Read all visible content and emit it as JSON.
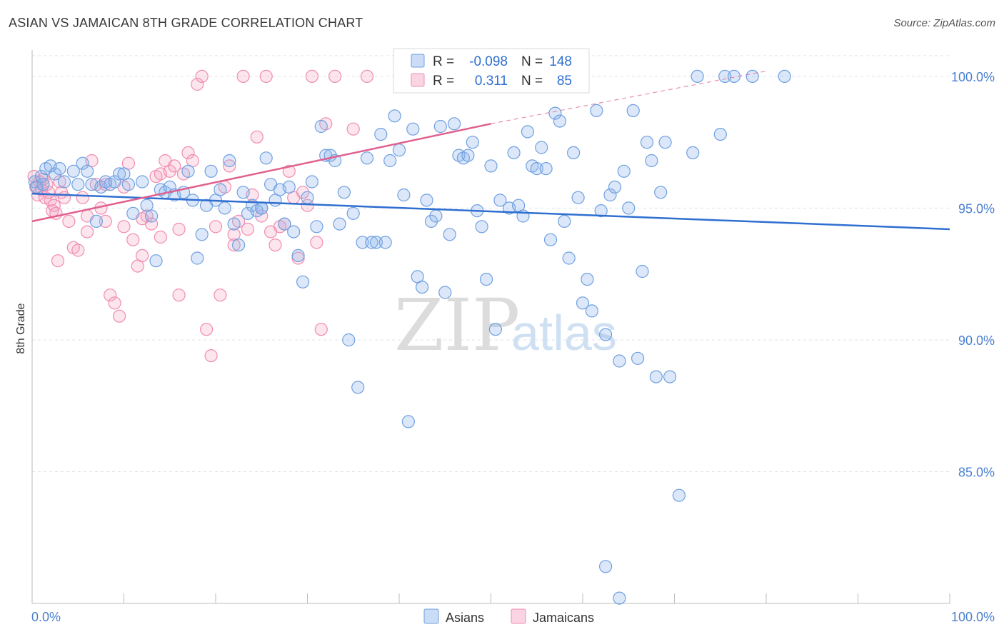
{
  "title": "ASIAN VS JAMAICAN 8TH GRADE CORRELATION CHART",
  "source": "Source: ZipAtlas.com",
  "watermark": {
    "zip": "ZIP",
    "atlas": "atlas"
  },
  "colors": {
    "asians": "#6fa0e0",
    "asians_fill": "rgba(140,180,235,0.30)",
    "asians_line": "#2f6fd0",
    "jamaicans": "#f08cb0",
    "jamaicans_fill": "rgba(245,160,190,0.28)",
    "jamaicans_line": "#e0608e",
    "grid": "#dde3ea",
    "tick_text": "#4a7fd0"
  },
  "stats": {
    "asians": {
      "r_label": "R =",
      "r": "-0.098",
      "n_label": "N =",
      "n": "148"
    },
    "jamaicans": {
      "r_label": "R =",
      "r": "0.311",
      "n_label": "N =",
      "n": "85"
    }
  },
  "chart_data": {
    "type": "scatter",
    "title": "ASIAN VS JAMAICAN 8TH GRADE CORRELATION CHART",
    "xlabel": "",
    "ylabel": "8th Grade",
    "xlim": [
      0,
      100
    ],
    "ylim": [
      80.0,
      101.0
    ],
    "x_ticks": [
      0,
      100
    ],
    "x_tick_labels": [
      "0.0%",
      "100.0%"
    ],
    "y_ticks": [
      85,
      90,
      95,
      100
    ],
    "y_tick_labels": [
      "85.0%",
      "90.0%",
      "95.0%",
      "100.0%"
    ],
    "grid": true,
    "legend": "bottom",
    "series": [
      {
        "name": "Asians",
        "trend": {
          "x": [
            0,
            100
          ],
          "y": [
            95.55,
            94.2
          ]
        },
        "points": [
          [
            0.3,
            96.0
          ],
          [
            0.5,
            95.8
          ],
          [
            1.0,
            96.2
          ],
          [
            1.2,
            95.9
          ],
          [
            1.5,
            96.5
          ],
          [
            2.0,
            96.6
          ],
          [
            2.5,
            96.3
          ],
          [
            3.0,
            96.5
          ],
          [
            3.5,
            96.0
          ],
          [
            4.5,
            96.4
          ],
          [
            5.0,
            95.9
          ],
          [
            5.5,
            96.7
          ],
          [
            6.0,
            96.4
          ],
          [
            6.5,
            95.9
          ],
          [
            7.0,
            94.5
          ],
          [
            7.5,
            95.8
          ],
          [
            8.0,
            96.0
          ],
          [
            8.5,
            95.9
          ],
          [
            9.0,
            96.0
          ],
          [
            9.5,
            96.3
          ],
          [
            10.0,
            96.3
          ],
          [
            10.5,
            95.9
          ],
          [
            11.0,
            94.8
          ],
          [
            12.0,
            96.0
          ],
          [
            12.5,
            95.1
          ],
          [
            13.0,
            94.7
          ],
          [
            13.5,
            93.0
          ],
          [
            14.0,
            95.7
          ],
          [
            14.5,
            95.6
          ],
          [
            15.0,
            95.8
          ],
          [
            15.5,
            95.5
          ],
          [
            16.5,
            95.6
          ],
          [
            17.0,
            96.4
          ],
          [
            17.5,
            95.3
          ],
          [
            18.0,
            93.1
          ],
          [
            18.5,
            94.0
          ],
          [
            19.0,
            95.1
          ],
          [
            19.5,
            96.4
          ],
          [
            20.0,
            95.3
          ],
          [
            20.5,
            95.7
          ],
          [
            21.0,
            95.0
          ],
          [
            21.5,
            96.8
          ],
          [
            22.0,
            94.4
          ],
          [
            22.5,
            93.6
          ],
          [
            23.0,
            95.6
          ],
          [
            23.5,
            94.8
          ],
          [
            24.0,
            95.1
          ],
          [
            24.5,
            94.9
          ],
          [
            25.0,
            95.0
          ],
          [
            25.5,
            96.9
          ],
          [
            26.0,
            95.9
          ],
          [
            26.5,
            95.3
          ],
          [
            27.0,
            95.7
          ],
          [
            27.5,
            94.4
          ],
          [
            28.0,
            95.8
          ],
          [
            28.5,
            94.1
          ],
          [
            29.0,
            93.2
          ],
          [
            29.5,
            92.2
          ],
          [
            30.0,
            95.4
          ],
          [
            30.5,
            96.0
          ],
          [
            31.0,
            94.3
          ],
          [
            31.5,
            98.1
          ],
          [
            32.0,
            97.0
          ],
          [
            32.5,
            97.0
          ],
          [
            33.0,
            96.8
          ],
          [
            33.5,
            94.4
          ],
          [
            34.0,
            95.6
          ],
          [
            34.5,
            90.0
          ],
          [
            35.0,
            94.8
          ],
          [
            35.5,
            88.2
          ],
          [
            36.0,
            93.7
          ],
          [
            36.5,
            96.9
          ],
          [
            37.0,
            93.7
          ],
          [
            37.5,
            93.7
          ],
          [
            38.0,
            97.8
          ],
          [
            38.5,
            93.7
          ],
          [
            39.0,
            96.8
          ],
          [
            39.5,
            98.5
          ],
          [
            40.0,
            97.2
          ],
          [
            40.5,
            95.5
          ],
          [
            41.0,
            86.9
          ],
          [
            41.5,
            98.0
          ],
          [
            42.0,
            92.4
          ],
          [
            42.5,
            92.0
          ],
          [
            43.0,
            95.3
          ],
          [
            43.5,
            94.5
          ],
          [
            44.0,
            94.7
          ],
          [
            44.5,
            98.1
          ],
          [
            45.0,
            91.8
          ],
          [
            45.5,
            94.0
          ],
          [
            46.0,
            98.2
          ],
          [
            46.5,
            97.0
          ],
          [
            47.0,
            96.9
          ],
          [
            47.5,
            97.0
          ],
          [
            48.0,
            97.5
          ],
          [
            48.5,
            94.9
          ],
          [
            49.0,
            94.3
          ],
          [
            49.5,
            92.3
          ],
          [
            50.0,
            96.6
          ],
          [
            50.5,
            90.4
          ],
          [
            51.0,
            95.3
          ],
          [
            52.0,
            95.0
          ],
          [
            52.5,
            97.1
          ],
          [
            53.0,
            95.1
          ],
          [
            53.5,
            94.7
          ],
          [
            54.0,
            97.9
          ],
          [
            54.5,
            96.6
          ],
          [
            55.0,
            96.5
          ],
          [
            55.5,
            97.3
          ],
          [
            56.0,
            96.5
          ],
          [
            56.5,
            93.8
          ],
          [
            57.0,
            98.6
          ],
          [
            57.5,
            98.3
          ],
          [
            58.0,
            94.5
          ],
          [
            58.5,
            93.1
          ],
          [
            59.0,
            97.1
          ],
          [
            59.5,
            95.4
          ],
          [
            60.0,
            91.4
          ],
          [
            60.5,
            92.3
          ],
          [
            61.0,
            91.1
          ],
          [
            61.5,
            98.7
          ],
          [
            62.0,
            94.9
          ],
          [
            62.5,
            90.2
          ],
          [
            63.0,
            95.5
          ],
          [
            63.5,
            95.8
          ],
          [
            64.0,
            89.2
          ],
          [
            64.5,
            96.4
          ],
          [
            65.0,
            95.0
          ],
          [
            65.5,
            98.7
          ],
          [
            66.0,
            89.3
          ],
          [
            66.5,
            92.6
          ],
          [
            67.0,
            97.5
          ],
          [
            67.5,
            96.8
          ],
          [
            68.0,
            88.6
          ],
          [
            68.5,
            95.6
          ],
          [
            69.0,
            97.5
          ],
          [
            69.5,
            88.6
          ],
          [
            70.5,
            84.1
          ],
          [
            72.0,
            97.1
          ],
          [
            72.5,
            100.0
          ],
          [
            75.0,
            97.8
          ],
          [
            75.5,
            100.0
          ],
          [
            76.5,
            100.0
          ],
          [
            78.5,
            100.0
          ],
          [
            82.0,
            100.0
          ],
          [
            62.5,
            81.4
          ],
          [
            64.0,
            80.2
          ],
          [
            25.0,
            95.0
          ]
        ]
      },
      {
        "name": "Jamaicans",
        "trend": {
          "x": [
            0,
            50
          ],
          "y": [
            94.5,
            98.2
          ]
        },
        "trend_ext": {
          "x": [
            50,
            80
          ],
          "y": [
            98.2,
            100.2
          ]
        },
        "points": [
          [
            0.2,
            96.2
          ],
          [
            0.4,
            95.8
          ],
          [
            0.6,
            95.5
          ],
          [
            0.8,
            96.0
          ],
          [
            1.0,
            95.7
          ],
          [
            1.2,
            96.1
          ],
          [
            1.4,
            95.4
          ],
          [
            1.6,
            95.9
          ],
          [
            1.8,
            95.6
          ],
          [
            2.0,
            95.3
          ],
          [
            2.2,
            94.9
          ],
          [
            2.4,
            95.1
          ],
          [
            2.6,
            94.8
          ],
          [
            2.8,
            93.0
          ],
          [
            3.0,
            96.0
          ],
          [
            3.2,
            95.6
          ],
          [
            3.5,
            95.4
          ],
          [
            4.0,
            94.5
          ],
          [
            4.5,
            93.5
          ],
          [
            5.0,
            93.4
          ],
          [
            5.5,
            95.4
          ],
          [
            6.0,
            94.1
          ],
          [
            6.5,
            96.8
          ],
          [
            7.0,
            95.9
          ],
          [
            7.5,
            95.0
          ],
          [
            8.0,
            95.9
          ],
          [
            8.5,
            91.7
          ],
          [
            9.0,
            91.4
          ],
          [
            9.5,
            90.9
          ],
          [
            10.0,
            95.8
          ],
          [
            10.5,
            96.7
          ],
          [
            11.0,
            93.8
          ],
          [
            11.5,
            92.8
          ],
          [
            12.0,
            93.2
          ],
          [
            12.5,
            94.7
          ],
          [
            13.0,
            94.4
          ],
          [
            13.5,
            96.2
          ],
          [
            14.0,
            96.3
          ],
          [
            14.5,
            96.8
          ],
          [
            15.0,
            96.4
          ],
          [
            15.5,
            96.6
          ],
          [
            16.0,
            94.2
          ],
          [
            16.5,
            96.3
          ],
          [
            17.0,
            97.1
          ],
          [
            17.5,
            96.8
          ],
          [
            18.0,
            99.7
          ],
          [
            18.5,
            100.0
          ],
          [
            19.0,
            90.4
          ],
          [
            19.5,
            89.4
          ],
          [
            20.0,
            94.3
          ],
          [
            20.5,
            91.7
          ],
          [
            21.0,
            95.8
          ],
          [
            21.5,
            96.6
          ],
          [
            22.0,
            94.0
          ],
          [
            22.5,
            94.5
          ],
          [
            23.0,
            100.0
          ],
          [
            23.5,
            94.2
          ],
          [
            24.0,
            95.5
          ],
          [
            24.5,
            97.7
          ],
          [
            25.0,
            94.7
          ],
          [
            25.5,
            100.0
          ],
          [
            26.0,
            94.1
          ],
          [
            26.5,
            93.6
          ],
          [
            27.0,
            94.3
          ],
          [
            27.5,
            94.4
          ],
          [
            28.0,
            96.4
          ],
          [
            28.5,
            95.4
          ],
          [
            29.0,
            93.1
          ],
          [
            29.5,
            95.6
          ],
          [
            30.0,
            95.1
          ],
          [
            30.5,
            100.0
          ],
          [
            31.0,
            93.7
          ],
          [
            31.5,
            90.4
          ],
          [
            32.0,
            98.2
          ],
          [
            33.0,
            100.0
          ],
          [
            35.0,
            98.0
          ],
          [
            36.5,
            100.0
          ],
          [
            45.5,
            100.0
          ],
          [
            12.0,
            94.6
          ],
          [
            14.0,
            93.9
          ],
          [
            22.0,
            93.6
          ],
          [
            8.0,
            94.5
          ],
          [
            6.0,
            94.7
          ],
          [
            10.0,
            94.3
          ],
          [
            16.0,
            91.7
          ]
        ]
      }
    ]
  }
}
